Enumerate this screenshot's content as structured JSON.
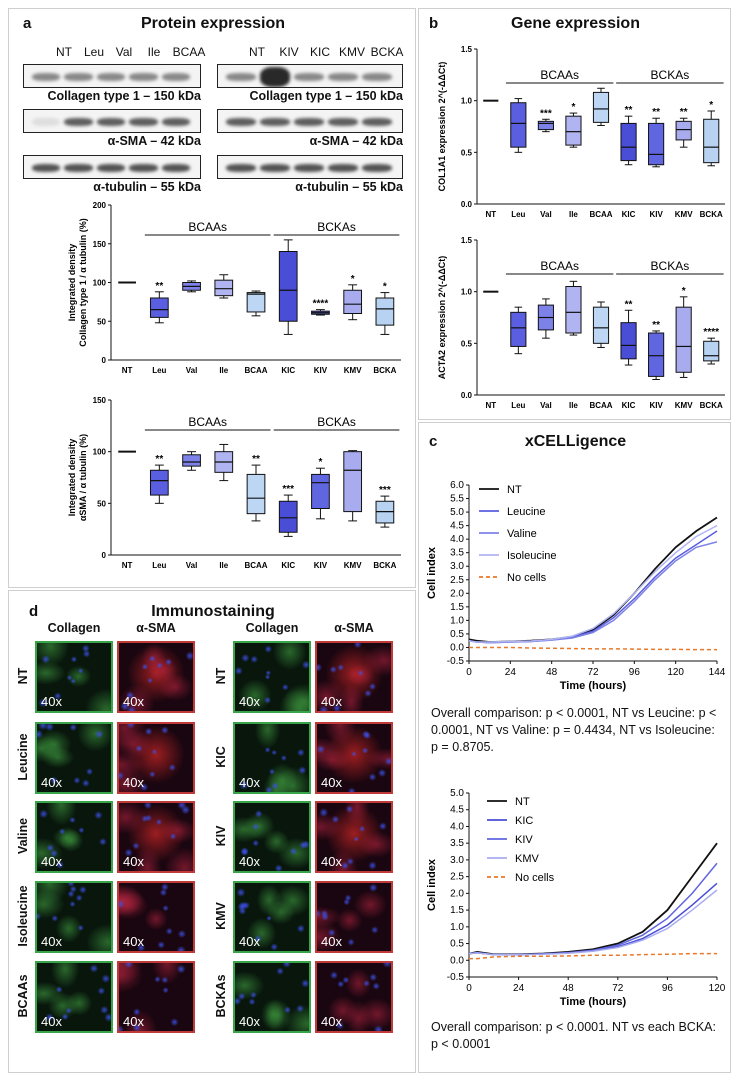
{
  "panel_a": {
    "letter": "a",
    "title": "Protein expression",
    "lanes_left": [
      "NT",
      "Leu",
      "Val",
      "Ile",
      "BCAA"
    ],
    "lanes_right": [
      "NT",
      "KIV",
      "KIC",
      "KMV",
      "BCKA"
    ],
    "blot_labels": [
      "Collagen type 1 – 150 kDa",
      "α-SMA – 42 kDa",
      "α-tubulin – 55 kDa"
    ]
  },
  "panel_b": {
    "letter": "b",
    "title": "Gene expression"
  },
  "panel_c": {
    "letter": "c",
    "title": "xCELLigence",
    "caption1": "Overall comparison: p < 0.0001, NT vs Leucine: p < 0.0001, NT vs Valine: p = 0.4434, NT vs Isoleucine: p = 0.8705.",
    "caption2": "Overall comparison: p < 0.0001. NT vs each BCKA: p < 0.0001"
  },
  "panel_d": {
    "letter": "d",
    "title": "Immunostaining",
    "col_headers": [
      "Collagen",
      "α-SMA",
      "Collagen",
      "α-SMA"
    ],
    "rows_left": [
      "NT",
      "Leucine",
      "Valine",
      "Isoleucine",
      "BCAAs"
    ],
    "rows_right": [
      "NT",
      "KIC",
      "KIV",
      "KMV",
      "BCKAs"
    ],
    "magnification": "40x"
  },
  "colors": {
    "nt": "#111111",
    "leu": "#5a5ee0",
    "val": "#7d82e8",
    "ile": "#b0b4f0",
    "bcaa": "#bcd6f4",
    "kic": "#4a4ed6",
    "kiv": "#6065e0",
    "kmv": "#a8acef",
    "bcka": "#b8d2f2",
    "nocells": "#e8782a",
    "green_frame": "#3aa44a",
    "red_frame": "#c03a3a"
  },
  "chart_data": [
    {
      "id": "collagen_protein",
      "type": "box",
      "ylabel": "Integrated density\nCollagen type 1 / α tubulin (%)",
      "ylim": [
        0,
        200
      ],
      "yticks": [
        0,
        50,
        100,
        150,
        200
      ],
      "categories": [
        "NT",
        "Leu",
        "Val",
        "Ile",
        "BCAA",
        "KIC",
        "KIV",
        "KMV",
        "BCKA"
      ],
      "groups": [
        {
          "label": "BCAAs",
          "from": 1,
          "to": 4
        },
        {
          "label": "BCKAs",
          "from": 5,
          "to": 8
        }
      ],
      "boxes": [
        {
          "nt": true,
          "median": 100
        },
        {
          "min": 48,
          "q1": 55,
          "median": 65,
          "q3": 80,
          "max": 88,
          "sig": "**"
        },
        {
          "min": 88,
          "q1": 90,
          "median": 95,
          "q3": 100,
          "max": 102,
          "sig": ""
        },
        {
          "min": 80,
          "q1": 83,
          "median": 92,
          "q3": 103,
          "max": 110,
          "sig": ""
        },
        {
          "min": 57,
          "q1": 62,
          "median": 85,
          "q3": 87,
          "max": 89,
          "sig": ""
        },
        {
          "min": 33,
          "q1": 50,
          "median": 90,
          "q3": 140,
          "max": 155,
          "sig": ""
        },
        {
          "min": 58,
          "q1": 59,
          "median": 61,
          "q3": 63,
          "max": 65,
          "sig": "****"
        },
        {
          "min": 52,
          "q1": 60,
          "median": 72,
          "q3": 90,
          "max": 97,
          "sig": "*"
        },
        {
          "min": 33,
          "q1": 45,
          "median": 66,
          "q3": 80,
          "max": 87,
          "sig": "*"
        }
      ]
    },
    {
      "id": "asma_protein",
      "type": "box",
      "ylabel": "Integrated density\nαSMA / α tubulin (%)",
      "ylim": [
        0,
        150
      ],
      "yticks": [
        0,
        50,
        100,
        150
      ],
      "categories": [
        "NT",
        "Leu",
        "Val",
        "Ile",
        "BCAA",
        "KIC",
        "KIV",
        "KMV",
        "BCKA"
      ],
      "groups": [
        {
          "label": "BCAAs",
          "from": 1,
          "to": 4
        },
        {
          "label": "BCKAs",
          "from": 5,
          "to": 8
        }
      ],
      "boxes": [
        {
          "nt": true,
          "median": 100
        },
        {
          "min": 50,
          "q1": 58,
          "median": 72,
          "q3": 82,
          "max": 87,
          "sig": "**"
        },
        {
          "min": 82,
          "q1": 86,
          "median": 90,
          "q3": 97,
          "max": 100,
          "sig": ""
        },
        {
          "min": 72,
          "q1": 80,
          "median": 90,
          "q3": 100,
          "max": 107,
          "sig": ""
        },
        {
          "min": 33,
          "q1": 40,
          "median": 55,
          "q3": 78,
          "max": 87,
          "sig": "**"
        },
        {
          "min": 18,
          "q1": 22,
          "median": 36,
          "q3": 52,
          "max": 58,
          "sig": "***"
        },
        {
          "min": 35,
          "q1": 45,
          "median": 70,
          "q3": 78,
          "max": 84,
          "sig": "*"
        },
        {
          "min": 33,
          "q1": 42,
          "median": 82,
          "q3": 100,
          "max": 101,
          "sig": ""
        },
        {
          "min": 27,
          "q1": 31,
          "median": 42,
          "q3": 52,
          "max": 57,
          "sig": "***"
        }
      ]
    },
    {
      "id": "col1a1_gene",
      "type": "box",
      "ylabel": "COL1A1 expression 2^(-ΔΔCt)",
      "ylim": [
        0,
        1.5
      ],
      "yticks": [
        0.0,
        0.5,
        1.0,
        1.5
      ],
      "categories": [
        "NT",
        "Leu",
        "Val",
        "Ile",
        "BCAA",
        "KIC",
        "KIV",
        "KMV",
        "BCKA"
      ],
      "groups": [
        {
          "label": "BCAAs",
          "from": 1,
          "to": 4
        },
        {
          "label": "BCKAs",
          "from": 5,
          "to": 8
        }
      ],
      "boxes": [
        {
          "nt": true,
          "median": 1.0
        },
        {
          "min": 0.5,
          "q1": 0.55,
          "median": 0.78,
          "q3": 0.98,
          "max": 1.02,
          "sig": ""
        },
        {
          "min": 0.7,
          "q1": 0.72,
          "median": 0.78,
          "q3": 0.8,
          "max": 0.82,
          "sig": "***"
        },
        {
          "min": 0.55,
          "q1": 0.57,
          "median": 0.7,
          "q3": 0.85,
          "max": 0.88,
          "sig": "*"
        },
        {
          "min": 0.76,
          "q1": 0.79,
          "median": 0.92,
          "q3": 1.08,
          "max": 1.12,
          "sig": ""
        },
        {
          "min": 0.38,
          "q1": 0.42,
          "median": 0.55,
          "q3": 0.78,
          "max": 0.85,
          "sig": "**"
        },
        {
          "min": 0.36,
          "q1": 0.38,
          "median": 0.48,
          "q3": 0.78,
          "max": 0.83,
          "sig": "**"
        },
        {
          "min": 0.55,
          "q1": 0.62,
          "median": 0.72,
          "q3": 0.8,
          "max": 0.83,
          "sig": "**"
        },
        {
          "min": 0.37,
          "q1": 0.4,
          "median": 0.55,
          "q3": 0.82,
          "max": 0.9,
          "sig": "*"
        }
      ]
    },
    {
      "id": "acta2_gene",
      "type": "box",
      "ylabel": "ACTA2 expression 2^(-ΔΔCt)",
      "ylim": [
        0,
        1.5
      ],
      "yticks": [
        0.0,
        0.5,
        1.0,
        1.5
      ],
      "categories": [
        "NT",
        "Leu",
        "Val",
        "Ile",
        "BCAA",
        "KIC",
        "KIV",
        "KMV",
        "BCKA"
      ],
      "groups": [
        {
          "label": "BCAAs",
          "from": 1,
          "to": 4
        },
        {
          "label": "BCKAs",
          "from": 5,
          "to": 8
        }
      ],
      "boxes": [
        {
          "nt": true,
          "median": 1.0
        },
        {
          "min": 0.4,
          "q1": 0.47,
          "median": 0.65,
          "q3": 0.8,
          "max": 0.85,
          "sig": ""
        },
        {
          "min": 0.55,
          "q1": 0.63,
          "median": 0.75,
          "q3": 0.87,
          "max": 0.93,
          "sig": ""
        },
        {
          "min": 0.58,
          "q1": 0.6,
          "median": 0.8,
          "q3": 1.05,
          "max": 1.1,
          "sig": ""
        },
        {
          "min": 0.46,
          "q1": 0.5,
          "median": 0.65,
          "q3": 0.85,
          "max": 0.9,
          "sig": ""
        },
        {
          "min": 0.29,
          "q1": 0.35,
          "median": 0.48,
          "q3": 0.7,
          "max": 0.82,
          "sig": "**"
        },
        {
          "min": 0.15,
          "q1": 0.18,
          "median": 0.38,
          "q3": 0.6,
          "max": 0.62,
          "sig": "**"
        },
        {
          "min": 0.17,
          "q1": 0.22,
          "median": 0.47,
          "q3": 0.85,
          "max": 0.95,
          "sig": "*"
        },
        {
          "min": 0.3,
          "q1": 0.33,
          "median": 0.38,
          "q3": 0.52,
          "max": 0.55,
          "sig": "****"
        }
      ]
    },
    {
      "id": "xcelligence_bcaa",
      "type": "line",
      "xlabel": "Time (hours)",
      "ylabel": "Cell index",
      "xlim": [
        0,
        144
      ],
      "xticks": [
        0,
        24,
        48,
        72,
        96,
        120,
        144
      ],
      "ylim": [
        -0.5,
        6.0
      ],
      "yticks": [
        -0.5,
        0.0,
        0.5,
        1.0,
        1.5,
        2.0,
        2.5,
        3.0,
        3.5,
        4.0,
        4.5,
        5.0,
        5.5,
        6.0
      ],
      "x": [
        0,
        4,
        12,
        24,
        36,
        48,
        60,
        72,
        84,
        96,
        108,
        120,
        132,
        144
      ],
      "series": [
        {
          "name": "NT",
          "values": [
            0.3,
            0.25,
            0.2,
            0.22,
            0.25,
            0.3,
            0.4,
            0.65,
            1.2,
            2.0,
            2.9,
            3.7,
            4.3,
            4.8
          ]
        },
        {
          "name": "Leucine",
          "values": [
            0.25,
            0.2,
            0.18,
            0.2,
            0.22,
            0.28,
            0.38,
            0.6,
            1.1,
            1.8,
            2.6,
            3.3,
            3.8,
            4.3
          ]
        },
        {
          "name": "Valine",
          "values": [
            0.25,
            0.2,
            0.18,
            0.2,
            0.22,
            0.27,
            0.35,
            0.55,
            1.0,
            1.7,
            2.5,
            3.2,
            3.7,
            3.9
          ]
        },
        {
          "name": "Isoleucine",
          "values": [
            0.25,
            0.2,
            0.2,
            0.22,
            0.24,
            0.3,
            0.42,
            0.7,
            1.25,
            2.0,
            2.8,
            3.5,
            4.1,
            4.5
          ]
        },
        {
          "name": "No cells",
          "dashed": true,
          "values": [
            0.0,
            0.0,
            0.0,
            0.0,
            -0.02,
            -0.03,
            -0.04,
            -0.05,
            -0.05,
            -0.06,
            -0.07,
            -0.07,
            -0.08,
            -0.08
          ]
        }
      ]
    },
    {
      "id": "xcelligence_bcka",
      "type": "line",
      "xlabel": "Time (hours)",
      "ylabel": "Cell index",
      "xlim": [
        0,
        120
      ],
      "xticks": [
        0,
        24,
        48,
        72,
        96,
        120
      ],
      "ylim": [
        -0.5,
        5.0
      ],
      "yticks": [
        -0.5,
        0.0,
        0.5,
        1.0,
        1.5,
        2.0,
        2.5,
        3.0,
        3.5,
        4.0,
        4.5,
        5.0
      ],
      "x": [
        0,
        4,
        12,
        24,
        36,
        48,
        60,
        72,
        84,
        96,
        108,
        120
      ],
      "series": [
        {
          "name": "NT",
          "values": [
            0.2,
            0.25,
            0.18,
            0.18,
            0.2,
            0.25,
            0.33,
            0.5,
            0.85,
            1.5,
            2.5,
            3.5
          ]
        },
        {
          "name": "KIC",
          "values": [
            0.2,
            0.22,
            0.17,
            0.17,
            0.19,
            0.22,
            0.28,
            0.4,
            0.65,
            1.05,
            1.65,
            2.3
          ]
        },
        {
          "name": "KIV",
          "values": [
            0.2,
            0.23,
            0.17,
            0.17,
            0.19,
            0.23,
            0.3,
            0.45,
            0.75,
            1.25,
            2.0,
            2.9
          ]
        },
        {
          "name": "KMV",
          "values": [
            0.2,
            0.22,
            0.17,
            0.17,
            0.18,
            0.21,
            0.27,
            0.38,
            0.6,
            0.95,
            1.5,
            2.1
          ]
        },
        {
          "name": "No cells",
          "dashed": true,
          "values": [
            0.05,
            0.05,
            0.1,
            0.12,
            0.12,
            0.13,
            0.15,
            0.15,
            0.17,
            0.18,
            0.2,
            0.2
          ]
        }
      ]
    }
  ]
}
